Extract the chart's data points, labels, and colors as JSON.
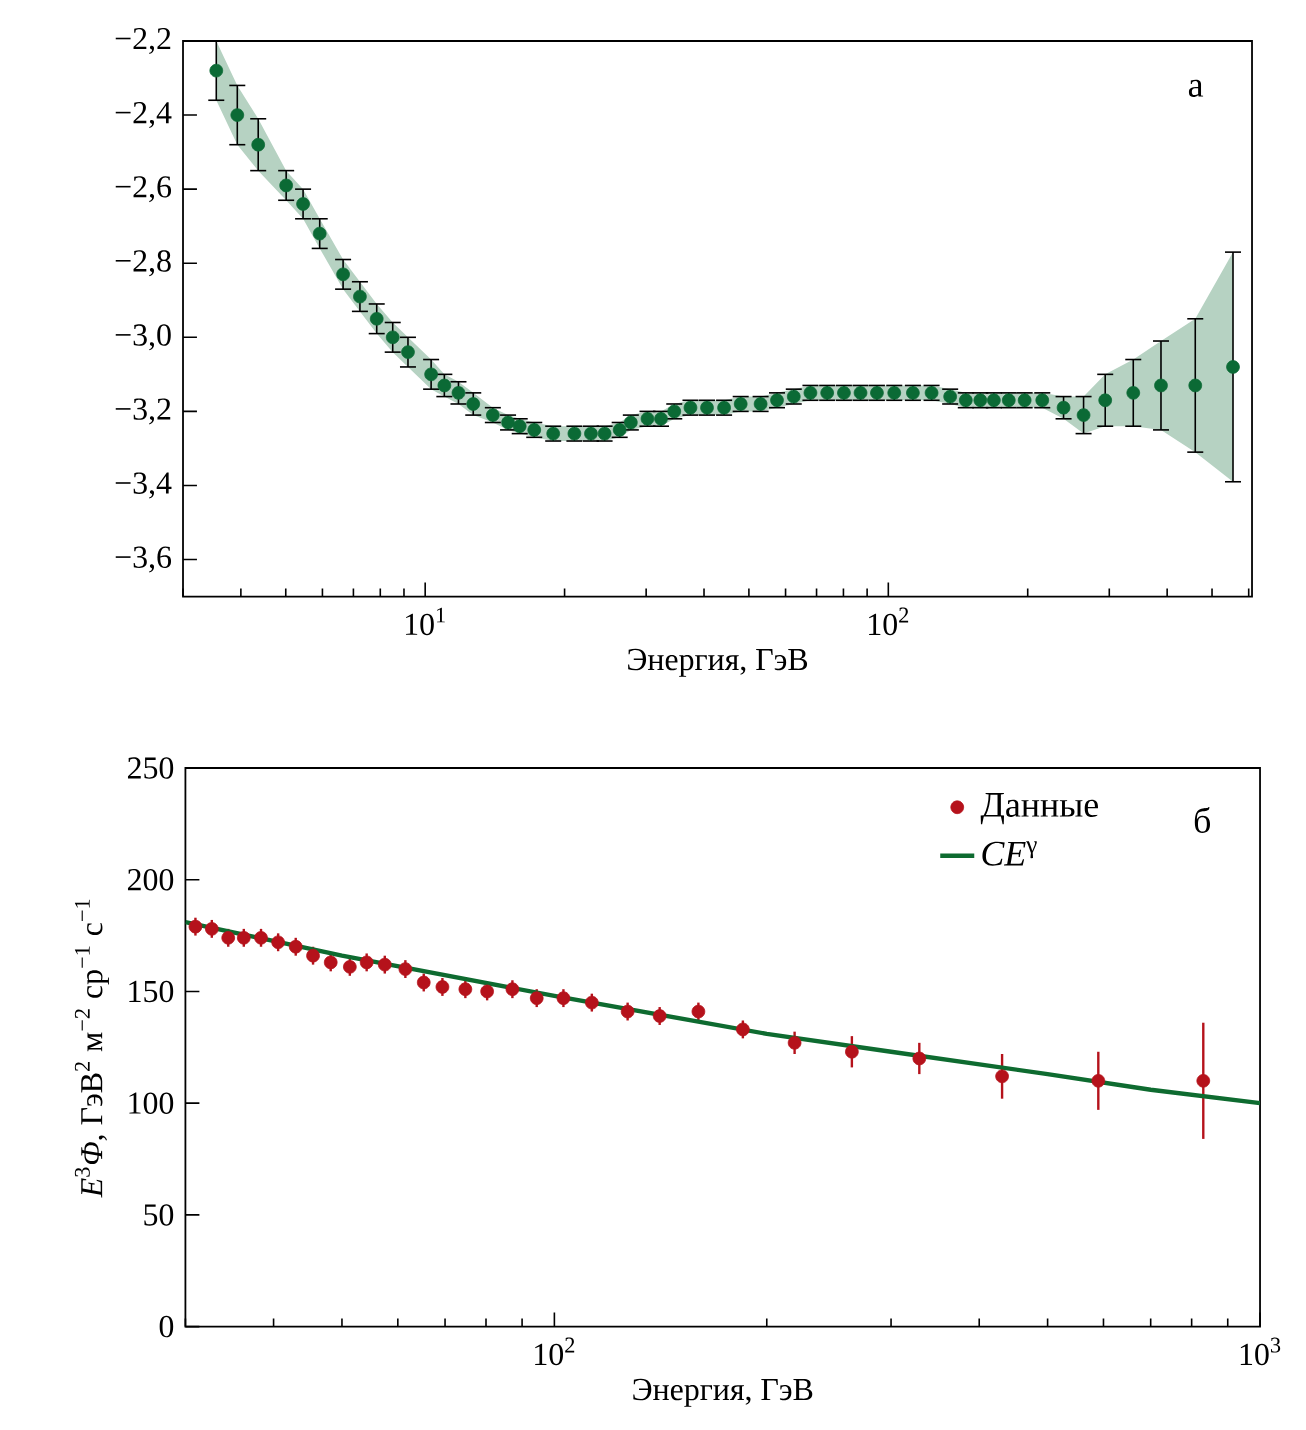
{
  "chart_data": [
    {
      "type": "scatter",
      "xlabel": "Энергия, ГэВ",
      "annotations": [
        "а"
      ],
      "log": "x",
      "xlim": [
        3,
        610
      ],
      "ylim": [
        -3.7,
        -2.2
      ],
      "xticks": [
        {
          "value": 10,
          "label": "10$^{1}$"
        },
        {
          "value": 100,
          "label": "10$^{2}$"
        }
      ],
      "yticks": [
        {
          "value": -3.6,
          "label": "−3,6"
        },
        {
          "value": -3.4,
          "label": "−3,4"
        },
        {
          "value": -3.2,
          "label": "−3,2"
        },
        {
          "value": -3.0,
          "label": "−3,0"
        },
        {
          "value": -2.8,
          "label": "−2,8"
        },
        {
          "value": -2.6,
          "label": "−2,6"
        },
        {
          "value": -2.4,
          "label": "−2,4"
        },
        {
          "value": -2.2,
          "label": "−2,2"
        }
      ],
      "series": [
        {
          "marker": "circle",
          "color": "#0b6a35",
          "x": [
            3.54,
            3.93,
            4.36,
            5.01,
            5.45,
            5.92,
            6.65,
            7.23,
            7.86,
            8.51,
            9.18,
            10.3,
            11.0,
            11.8,
            12.7,
            14.0,
            15.1,
            16.0,
            17.2,
            18.9,
            21.0,
            22.8,
            24.4,
            26.3,
            27.8,
            30.2,
            32.3,
            34.5,
            37.4,
            40.6,
            44.2,
            48.0,
            53.0,
            57.5,
            62.5,
            67.9,
            73.8,
            80.2,
            87.1,
            94.5,
            103,
            113,
            124,
            136,
            147,
            158,
            169,
            182,
            197,
            215,
            239,
            264,
            294,
            338,
            388,
            460,
            555
          ],
          "values": [
            -2.28,
            -2.4,
            -2.48,
            -2.59,
            -2.64,
            -2.72,
            -2.83,
            -2.89,
            -2.95,
            -3.0,
            -3.04,
            -3.1,
            -3.13,
            -3.15,
            -3.18,
            -3.21,
            -3.23,
            -3.24,
            -3.25,
            -3.26,
            -3.26,
            -3.26,
            -3.26,
            -3.25,
            -3.23,
            -3.22,
            -3.22,
            -3.2,
            -3.19,
            -3.19,
            -3.19,
            -3.18,
            -3.18,
            -3.17,
            -3.16,
            -3.15,
            -3.15,
            -3.15,
            -3.15,
            -3.15,
            -3.15,
            -3.15,
            -3.15,
            -3.16,
            -3.17,
            -3.17,
            -3.17,
            -3.17,
            -3.17,
            -3.17,
            -3.19,
            -3.21,
            -3.17,
            -3.15,
            -3.13,
            -3.13,
            -3.08
          ],
          "errors": [
            0.08,
            0.08,
            0.07,
            0.04,
            0.04,
            0.04,
            0.04,
            0.04,
            0.04,
            0.04,
            0.04,
            0.04,
            0.03,
            0.03,
            0.03,
            0.02,
            0.02,
            0.02,
            0.02,
            0.02,
            0.02,
            0.02,
            0.02,
            0.02,
            0.02,
            0.02,
            0.02,
            0.02,
            0.02,
            0.02,
            0.02,
            0.02,
            0.02,
            0.02,
            0.02,
            0.02,
            0.02,
            0.02,
            0.02,
            0.02,
            0.02,
            0.02,
            0.02,
            0.02,
            0.02,
            0.02,
            0.02,
            0.02,
            0.02,
            0.02,
            0.03,
            0.05,
            0.07,
            0.09,
            0.12,
            0.18,
            0.31
          ],
          "upper": [
            -2.2,
            -2.32,
            -2.41,
            -2.55,
            -2.6,
            -2.68,
            -2.79,
            -2.85,
            -2.91,
            -2.96,
            -3.0,
            -3.06,
            -3.1,
            -3.12,
            -3.15,
            -3.19,
            -3.21,
            -3.22,
            -3.23,
            -3.24,
            -3.24,
            -3.24,
            -3.24,
            -3.23,
            -3.21,
            -3.2,
            -3.2,
            -3.18,
            -3.17,
            -3.17,
            -3.17,
            -3.16,
            -3.16,
            -3.15,
            -3.14,
            -3.13,
            -3.13,
            -3.13,
            -3.13,
            -3.13,
            -3.13,
            -3.13,
            -3.13,
            -3.14,
            -3.15,
            -3.15,
            -3.15,
            -3.15,
            -3.15,
            -3.15,
            -3.16,
            -3.16,
            -3.1,
            -3.06,
            -3.01,
            -2.95,
            -2.77
          ],
          "lower": [
            -2.36,
            -2.48,
            -2.55,
            -2.63,
            -2.68,
            -2.76,
            -2.87,
            -2.93,
            -2.99,
            -3.04,
            -3.08,
            -3.14,
            -3.16,
            -3.18,
            -3.21,
            -3.23,
            -3.25,
            -3.26,
            -3.27,
            -3.28,
            -3.28,
            -3.28,
            -3.28,
            -3.27,
            -3.25,
            -3.24,
            -3.24,
            -3.22,
            -3.21,
            -3.21,
            -3.21,
            -3.2,
            -3.2,
            -3.19,
            -3.18,
            -3.17,
            -3.17,
            -3.17,
            -3.17,
            -3.17,
            -3.17,
            -3.17,
            -3.17,
            -3.18,
            -3.19,
            -3.19,
            -3.19,
            -3.19,
            -3.19,
            -3.19,
            -3.22,
            -3.26,
            -3.24,
            -3.24,
            -3.25,
            -3.31,
            -3.39
          ]
        }
      ]
    },
    {
      "type": "scatter",
      "xlabel": "Энергия, ГэВ",
      "ylabel": "*E*$^{3}$*Φ*, ГэВ$^{2}$ м$^{−2}$ ср$^{−1}$ с$^{−1}$",
      "annotations": [
        "б"
      ],
      "log": "x",
      "legend": "top right",
      "xlim": [
        30,
        1000
      ],
      "ylim": [
        0,
        250
      ],
      "xticks": [
        {
          "value": 100,
          "label": "10$^{2}$"
        },
        {
          "value": 1000,
          "label": "10$^{3}$"
        }
      ],
      "yticks": [
        0,
        50,
        100,
        150,
        200,
        250
      ],
      "series": [
        {
          "marker": "circle",
          "name": "Данные",
          "color": "#b5121b",
          "x": [
            31.0,
            32.7,
            34.5,
            36.3,
            38.4,
            40.6,
            43.0,
            45.5,
            48.2,
            51.3,
            54.2,
            57.5,
            61.5,
            65.3,
            69.4,
            74.8,
            80.3,
            87.2,
            94.4,
            103,
            113,
            127,
            141,
            160,
            185,
            219,
            264,
            329,
            431,
            590,
            831
          ],
          "values": [
            179,
            178,
            174,
            174,
            174,
            172,
            170,
            166,
            163,
            161,
            163,
            162,
            160,
            154,
            152,
            151,
            150,
            151,
            147,
            147,
            145,
            141,
            139,
            141,
            133,
            127,
            123,
            120,
            112,
            110,
            110
          ],
          "errors": [
            4,
            4,
            4,
            4,
            4,
            4,
            4,
            4,
            4,
            4,
            4,
            4,
            4,
            4,
            4,
            4,
            4,
            4,
            4,
            4,
            4,
            4,
            4,
            4,
            4,
            5,
            7,
            7,
            10,
            13,
            26
          ]
        },
        {
          "type": "line",
          "name": "*CE*$^{γ}$",
          "color": "#0e6b30",
          "x": [
            30,
            50,
            100,
            200,
            300,
            500,
            700,
            1000
          ],
          "values": [
            181,
            166,
            148,
            131,
            123,
            113,
            106,
            100
          ]
        }
      ]
    }
  ]
}
